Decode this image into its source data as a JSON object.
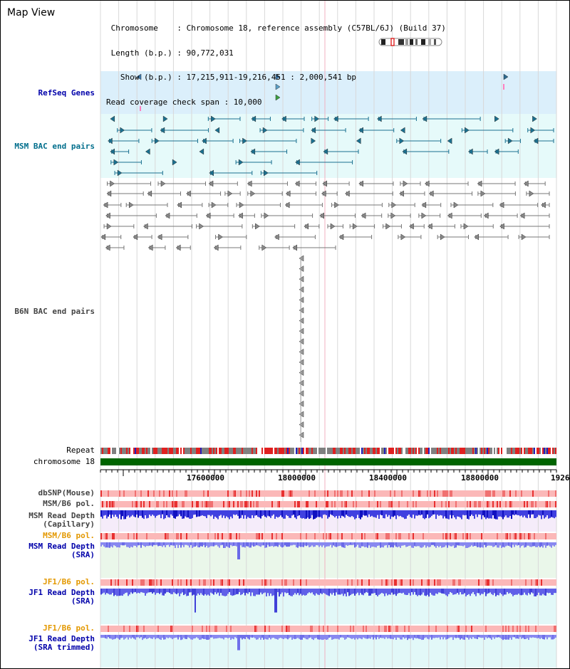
{
  "header": {
    "title": "Map View",
    "info_lines": [
      " Chromosome    : Chromosome 18, reference assembly (C57BL/6J) (Build 37)",
      " Length (b.p.) : 90,772,031",
      "   Show (b.p.) : 17,215,911-19,216,451 : 2,000,541 bp",
      "Read coverage check span : 10,000"
    ]
  },
  "tracks": {
    "refseq": "RefSeq Genes",
    "msm_bac": "MSM BAC end pairs",
    "b6n_bac": "B6N BAC end pairs",
    "repeat": "Repeat",
    "chromosome": "chromosome 18",
    "dbsnp": "dbSNP(Mouse)",
    "msm_b6_pol": "MSM/B6 pol.",
    "msm_depth_cap_1": "MSM Read Depth",
    "msm_depth_cap_2": "(Capillary)",
    "msm_b6_pol2": "MSM/B6 pol.",
    "msm_depth_sra_1": "MSM Read Depth",
    "msm_depth_sra_2": "(SRA)",
    "jf1_b6_pol": "JF1/B6 pol.",
    "jf1_depth_1": "JF1 Read Depth",
    "jf1_depth_2": "(SRA)",
    "jf1_b6_pol2": "JF1/B6 pol.",
    "jf1_trim_1": "JF1 Read Depth",
    "jf1_trim_2": "(SRA trimmed)"
  },
  "axis": {
    "ticks": [
      "17600000",
      "18000000",
      "18400000",
      "18800000",
      "1926"
    ]
  },
  "colors": {
    "refseq_bg": "#dbeffb",
    "msm_bac_bg": "#e6fafa",
    "chromosome_bar": "#006400",
    "depth_blue": "#2222dd",
    "depth_light": "#8888f0",
    "pol_red": "#e83030",
    "grid_line": "#d8d8d8"
  }
}
